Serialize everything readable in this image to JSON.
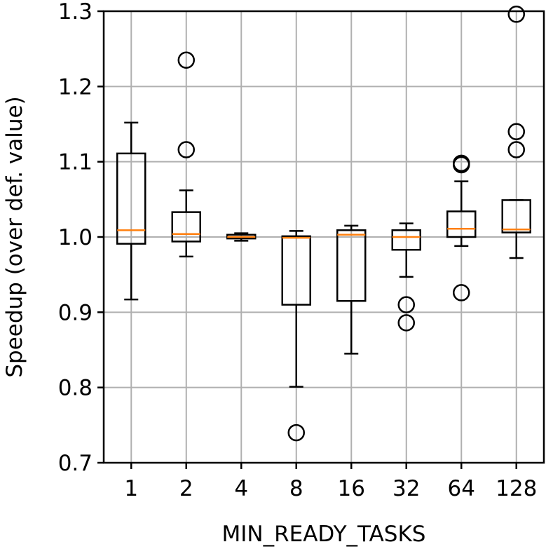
{
  "chart_data": {
    "type": "box",
    "title": "",
    "xlabel": "MIN_READY_TASKS",
    "ylabel": "Speedup (over def. value)",
    "ylim": [
      0.7,
      1.3
    ],
    "yticks": [
      "0.7",
      "0.8",
      "0.9",
      "1.0",
      "1.1",
      "1.2",
      "1.3"
    ],
    "grid": true,
    "colors": {
      "median": "#ff7f0e",
      "box": "#000000",
      "grid": "#b0b0b0"
    },
    "categories": [
      "1",
      "2",
      "4",
      "8",
      "16",
      "32",
      "64",
      "128"
    ],
    "boxes": [
      {
        "category": "1",
        "whisker_low": 0.917,
        "q1": 0.991,
        "median": 1.009,
        "q3": 1.111,
        "whisker_high": 1.152,
        "fliers": []
      },
      {
        "category": "2",
        "whisker_low": 0.974,
        "q1": 0.994,
        "median": 1.004,
        "q3": 1.033,
        "whisker_high": 1.062,
        "fliers": [
          1.116,
          1.235
        ]
      },
      {
        "category": "4",
        "whisker_low": 0.995,
        "q1": 0.998,
        "median": 1.0,
        "q3": 1.003,
        "whisker_high": 1.005,
        "fliers": []
      },
      {
        "category": "8",
        "whisker_low": 0.801,
        "q1": 0.91,
        "median": 0.999,
        "q3": 1.001,
        "whisker_high": 1.008,
        "fliers": [
          0.74
        ]
      },
      {
        "category": "16",
        "whisker_low": 0.845,
        "q1": 0.915,
        "median": 1.003,
        "q3": 1.009,
        "whisker_high": 1.015,
        "fliers": []
      },
      {
        "category": "32",
        "whisker_low": 0.947,
        "q1": 0.983,
        "median": 1.0,
        "q3": 1.009,
        "whisker_high": 1.018,
        "fliers": [
          0.91,
          0.886
        ]
      },
      {
        "category": "64",
        "whisker_low": 0.988,
        "q1": 1.0,
        "median": 1.011,
        "q3": 1.034,
        "whisker_high": 1.074,
        "fliers": [
          1.096,
          1.098,
          0.926
        ]
      },
      {
        "category": "128",
        "whisker_low": 0.972,
        "q1": 1.006,
        "median": 1.01,
        "q3": 1.049,
        "whisker_high": 1.049,
        "fliers": [
          1.116,
          1.14,
          1.296
        ]
      }
    ]
  }
}
